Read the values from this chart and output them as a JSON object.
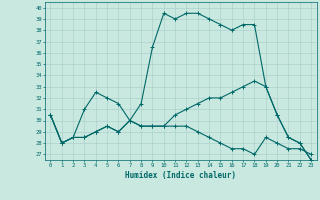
{
  "title": "",
  "xlabel": "Humidex (Indice chaleur)",
  "bg_color": "#c8e8e0",
  "line_color": "#006868",
  "grid_color": "#a8ccc8",
  "xlim": [
    -0.5,
    23.5
  ],
  "ylim": [
    26.5,
    40.5
  ],
  "yticks": [
    27,
    28,
    29,
    30,
    31,
    32,
    33,
    34,
    35,
    36,
    37,
    38,
    39,
    40
  ],
  "xticks": [
    0,
    1,
    2,
    3,
    4,
    5,
    6,
    7,
    8,
    9,
    10,
    11,
    12,
    13,
    14,
    15,
    16,
    17,
    18,
    19,
    20,
    21,
    22,
    23
  ],
  "line1": [
    30.5,
    28.0,
    28.5,
    31.0,
    32.5,
    32.0,
    31.5,
    30.0,
    31.5,
    36.5,
    39.5,
    39.0,
    39.5,
    39.5,
    39.0,
    38.5,
    38.0,
    38.5,
    38.5,
    33.0,
    30.5,
    28.5,
    28.0,
    26.5
  ],
  "line2": [
    30.5,
    28.0,
    28.5,
    28.5,
    29.0,
    29.5,
    29.0,
    30.0,
    29.5,
    29.5,
    29.5,
    29.5,
    29.5,
    29.0,
    28.5,
    28.0,
    27.5,
    27.5,
    27.0,
    28.5,
    28.0,
    27.5,
    27.5,
    27.0
  ],
  "line3": [
    30.5,
    28.0,
    28.5,
    28.5,
    29.0,
    29.5,
    29.0,
    30.0,
    29.5,
    29.5,
    29.5,
    30.5,
    31.0,
    31.5,
    32.0,
    32.0,
    32.5,
    33.0,
    33.5,
    33.0,
    30.5,
    28.5,
    28.0,
    26.5
  ]
}
